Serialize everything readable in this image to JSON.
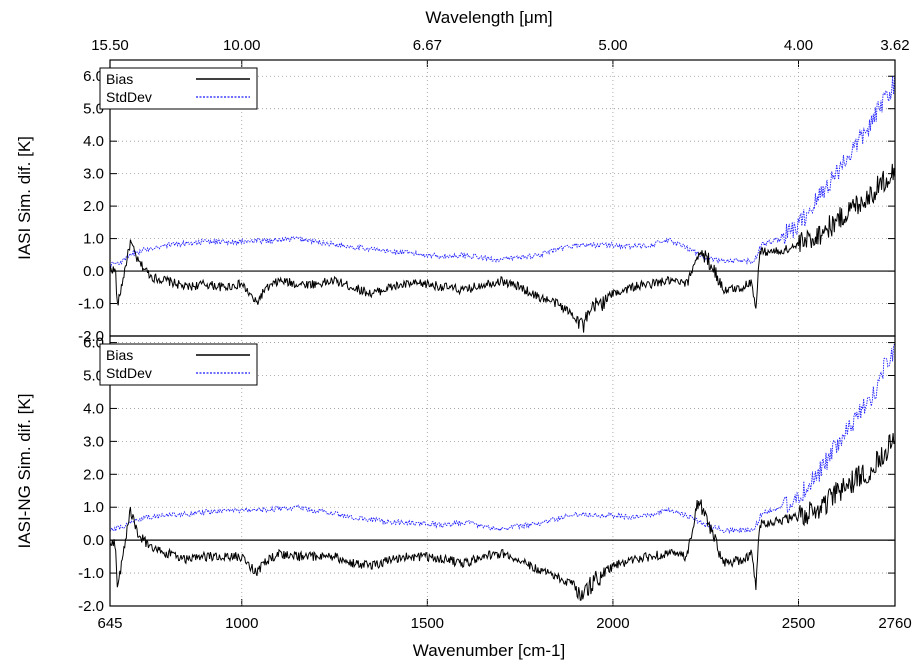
{
  "chart_data": {
    "type": "line",
    "top_axis": {
      "label": "Wavelength [μm]",
      "ticks": [
        {
          "label": "15.50",
          "wavenumber": 645
        },
        {
          "label": "10.00",
          "wavenumber": 1000
        },
        {
          "label": "6.67",
          "wavenumber": 1500
        },
        {
          "label": "5.00",
          "wavenumber": 2000
        },
        {
          "label": "4.00",
          "wavenumber": 2500
        },
        {
          "label": "3.62",
          "wavenumber": 2760
        }
      ]
    },
    "bottom_axis": {
      "label": "Wavenumber [cm-1]",
      "range": [
        645,
        2760
      ],
      "ticks": [
        {
          "label": "645",
          "value": 645
        },
        {
          "label": "1000",
          "value": 1000
        },
        {
          "label": "1500",
          "value": 1500
        },
        {
          "label": "2000",
          "value": 2000
        },
        {
          "label": "2500",
          "value": 2500
        },
        {
          "label": "2760",
          "value": 2760
        }
      ]
    },
    "grid": true,
    "colors": {
      "bias": "#000000",
      "stddev": "#1a1aff"
    },
    "panels": [
      {
        "ylabel": "IASI Sim. dif. [K]",
        "ylim": [
          -2.0,
          6.5
        ],
        "yticks": [
          "-2.0",
          "-1.0",
          "0.0",
          "1.0",
          "2.0",
          "3.0",
          "4.0",
          "5.0",
          "6.0"
        ],
        "legend_position": "top-left",
        "series": [
          {
            "name": "Bias",
            "style": "solid",
            "x": [
              645,
              660,
              665,
              700,
              720,
              760,
              800,
              850,
              900,
              950,
              1000,
              1040,
              1060,
              1100,
              1150,
              1200,
              1250,
              1300,
              1350,
              1400,
              1450,
              1500,
              1550,
              1600,
              1650,
              1700,
              1750,
              1800,
              1850,
              1900,
              1920,
              1950,
              2000,
              2050,
              2100,
              2150,
              2200,
              2230,
              2260,
              2300,
              2350,
              2375,
              2385,
              2395,
              2450,
              2500,
              2550,
              2600,
              2650,
              2700,
              2730,
              2760
            ],
            "y": [
              0.1,
              0.0,
              -1.1,
              0.9,
              0.3,
              -0.2,
              -0.3,
              -0.5,
              -0.4,
              -0.5,
              -0.4,
              -1.0,
              -0.6,
              -0.3,
              -0.4,
              -0.4,
              -0.3,
              -0.5,
              -0.7,
              -0.5,
              -0.4,
              -0.4,
              -0.5,
              -0.6,
              -0.4,
              -0.3,
              -0.5,
              -0.8,
              -1.0,
              -1.4,
              -1.7,
              -1.1,
              -0.7,
              -0.5,
              -0.4,
              -0.3,
              -0.4,
              0.6,
              0.3,
              -0.6,
              -0.5,
              -0.3,
              -1.3,
              0.6,
              0.6,
              0.8,
              1.1,
              1.5,
              2.0,
              2.4,
              2.8,
              3.1
            ]
          },
          {
            "name": "StdDev",
            "style": "dotted",
            "x": [
              645,
              680,
              700,
              750,
              800,
              850,
              900,
              1000,
              1100,
              1150,
              1200,
              1300,
              1400,
              1500,
              1550,
              1600,
              1650,
              1700,
              1800,
              1900,
              2000,
              2050,
              2100,
              2150,
              2200,
              2250,
              2300,
              2380,
              2400,
              2450,
              2500,
              2550,
              2600,
              2650,
              2700,
              2730,
              2760
            ],
            "y": [
              0.2,
              0.3,
              0.5,
              0.7,
              0.8,
              0.85,
              0.9,
              0.9,
              0.95,
              1.0,
              0.9,
              0.75,
              0.6,
              0.5,
              0.45,
              0.5,
              0.4,
              0.35,
              0.5,
              0.8,
              0.8,
              0.75,
              0.8,
              0.95,
              0.7,
              0.4,
              0.3,
              0.3,
              0.8,
              1.0,
              1.4,
              2.2,
              3.0,
              3.8,
              4.6,
              5.3,
              5.8
            ]
          }
        ]
      },
      {
        "ylabel": "IASI-NG Sim. dif. [K]",
        "ylim": [
          -2.0,
          6.2
        ],
        "yticks": [
          "-2.0",
          "-1.0",
          "0.0",
          "1.0",
          "2.0",
          "3.0",
          "4.0",
          "5.0",
          "6.0"
        ],
        "legend_position": "top-left",
        "series": [
          {
            "name": "Bias",
            "style": "solid",
            "x": [
              645,
              660,
              665,
              700,
              720,
              760,
              800,
              850,
              900,
              950,
              1000,
              1040,
              1060,
              1100,
              1150,
              1200,
              1250,
              1300,
              1350,
              1400,
              1450,
              1500,
              1550,
              1600,
              1650,
              1700,
              1750,
              1800,
              1850,
              1900,
              1920,
              1950,
              2000,
              2050,
              2100,
              2150,
              2200,
              2230,
              2260,
              2300,
              2350,
              2375,
              2385,
              2395,
              2450,
              2500,
              2550,
              2600,
              2650,
              2700,
              2730,
              2760
            ],
            "y": [
              0.0,
              -0.1,
              -1.5,
              0.9,
              0.2,
              -0.3,
              -0.4,
              -0.6,
              -0.5,
              -0.5,
              -0.5,
              -1.0,
              -0.7,
              -0.4,
              -0.5,
              -0.5,
              -0.5,
              -0.7,
              -0.8,
              -0.6,
              -0.5,
              -0.5,
              -0.6,
              -0.7,
              -0.5,
              -0.4,
              -0.6,
              -0.9,
              -1.1,
              -1.4,
              -1.7,
              -1.2,
              -0.8,
              -0.6,
              -0.5,
              -0.4,
              -0.5,
              1.2,
              0.4,
              -0.7,
              -0.6,
              -0.4,
              -1.5,
              0.5,
              0.6,
              0.7,
              0.9,
              1.4,
              1.8,
              2.2,
              2.7,
              3.0
            ]
          },
          {
            "name": "StdDev",
            "style": "dotted",
            "x": [
              645,
              680,
              700,
              750,
              800,
              850,
              900,
              1000,
              1100,
              1150,
              1200,
              1300,
              1400,
              1500,
              1550,
              1600,
              1650,
              1700,
              1800,
              1900,
              2000,
              2050,
              2100,
              2150,
              2200,
              2250,
              2300,
              2380,
              2400,
              2450,
              2500,
              2550,
              2600,
              2650,
              2700,
              2730,
              2760
            ],
            "y": [
              0.3,
              0.4,
              0.6,
              0.7,
              0.75,
              0.8,
              0.85,
              0.9,
              0.95,
              1.0,
              0.9,
              0.7,
              0.55,
              0.5,
              0.45,
              0.55,
              0.4,
              0.35,
              0.5,
              0.8,
              0.75,
              0.7,
              0.75,
              0.9,
              0.75,
              0.45,
              0.3,
              0.3,
              0.8,
              1.0,
              1.3,
              2.0,
              2.8,
              3.6,
              4.4,
              5.2,
              5.8
            ]
          }
        ]
      }
    ]
  }
}
